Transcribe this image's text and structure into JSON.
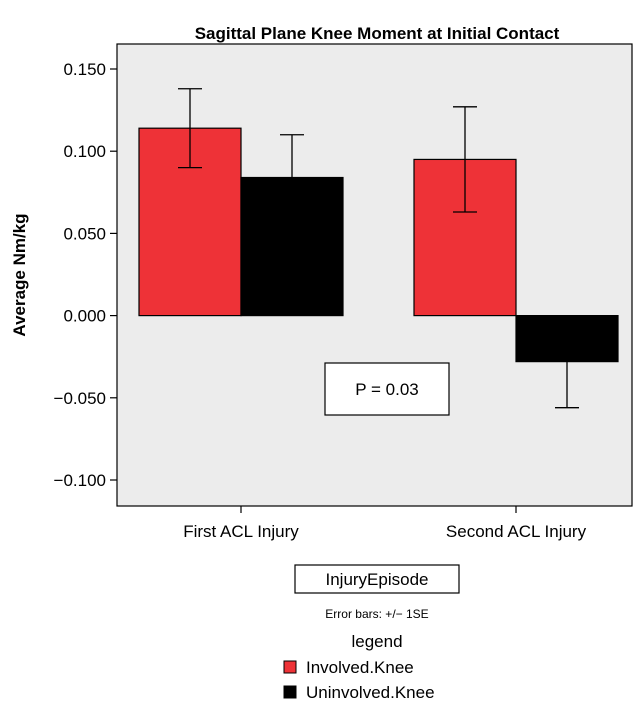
{
  "chart_data": {
    "type": "bar",
    "title": "Sagittal Plane Knee Moment at Initial Contact",
    "ylabel": "Average Nm/kg",
    "xlabel": "InjuryEpisode",
    "ylim": [
      -0.125,
      0.165
    ],
    "yticks": [
      0.15,
      0.1,
      0.05,
      0.0,
      -0.05,
      -0.1
    ],
    "ytick_labels": [
      "0.150",
      "0.100",
      "0.050",
      "0.000",
      "−0.050",
      "−0.100"
    ],
    "categories": [
      "First ACL Injury",
      "Second ACL Injury"
    ],
    "series": [
      {
        "name": "Involved.Knee",
        "color": "#ee3237",
        "values": [
          0.114,
          0.095
        ],
        "error": [
          0.024,
          0.032
        ]
      },
      {
        "name": "Uninvolved.Knee",
        "color": "#000000",
        "values": [
          0.084,
          -0.028
        ],
        "error": [
          0.026,
          0.028
        ]
      }
    ],
    "grid": false,
    "plot_background": "#ececec",
    "annotation": "P = 0.03",
    "error_note": "Error bars: +/− 1SE",
    "legend_title": "legend",
    "legend_position": "bottom"
  }
}
